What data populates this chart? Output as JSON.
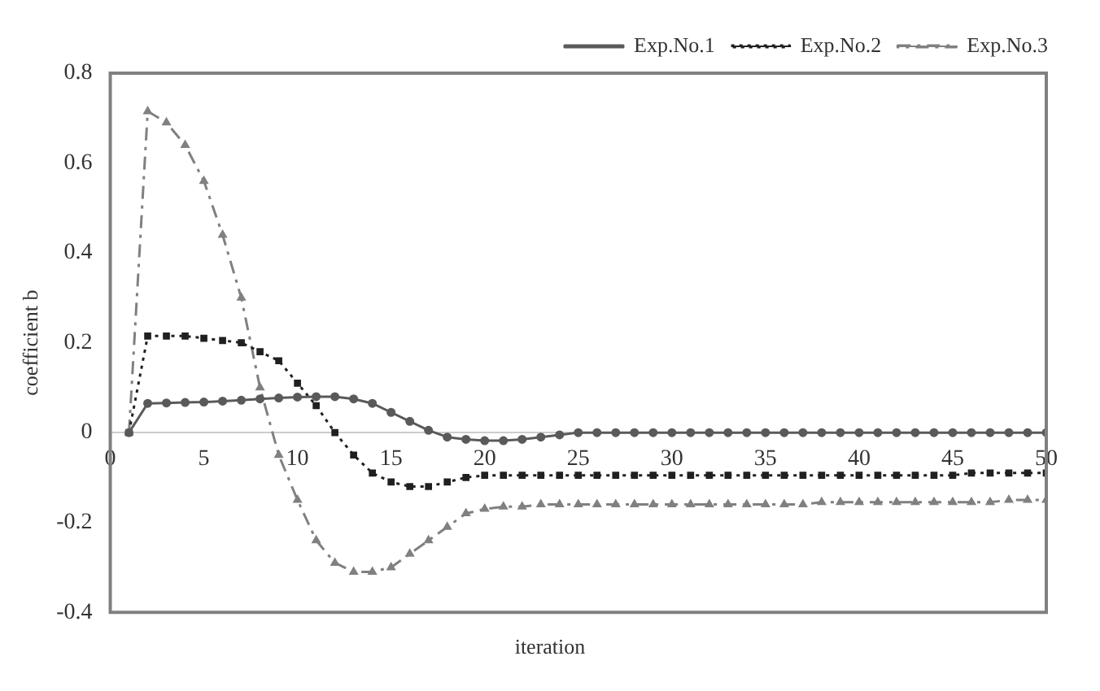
{
  "chart_data": {
    "type": "line",
    "xlabel": "iteration",
    "ylabel": "coefficient b",
    "x": [
      1,
      2,
      3,
      4,
      5,
      6,
      7,
      8,
      9,
      10,
      11,
      12,
      13,
      14,
      15,
      16,
      17,
      18,
      19,
      20,
      21,
      22,
      23,
      24,
      25,
      26,
      27,
      28,
      29,
      30,
      31,
      32,
      33,
      34,
      35,
      36,
      37,
      38,
      39,
      40,
      41,
      42,
      43,
      44,
      45,
      46,
      47,
      48,
      49,
      50
    ],
    "xlim": [
      0,
      50
    ],
    "xticks": [
      0,
      5,
      10,
      15,
      20,
      25,
      30,
      35,
      40,
      45,
      50
    ],
    "ylim": [
      -0.4,
      0.8
    ],
    "yticks": [
      -0.4,
      -0.2,
      0,
      0.2,
      0.4,
      0.6,
      0.8
    ],
    "grid": false,
    "legend": "top right",
    "series": [
      {
        "name": "Exp.No.1",
        "color": "#5a5a5a",
        "marker": "circle",
        "line_style": "solid",
        "values": [
          0,
          0.065,
          0.066,
          0.067,
          0.068,
          0.07,
          0.072,
          0.075,
          0.077,
          0.079,
          0.08,
          0.08,
          0.075,
          0.065,
          0.045,
          0.025,
          0.005,
          -0.01,
          -0.015,
          -0.018,
          -0.018,
          -0.015,
          -0.01,
          -0.005,
          0,
          0,
          0,
          0,
          0,
          0,
          0,
          0,
          0,
          0,
          0,
          0,
          0,
          0,
          0,
          0,
          0,
          0,
          0,
          0,
          0,
          0,
          0,
          0,
          0,
          0
        ]
      },
      {
        "name": "Exp.No.2",
        "color": "#202020",
        "marker": "square",
        "line_style": "dotted",
        "values": [
          0,
          0.215,
          0.215,
          0.215,
          0.21,
          0.205,
          0.2,
          0.18,
          0.16,
          0.11,
          0.06,
          0,
          -0.05,
          -0.09,
          -0.11,
          -0.12,
          -0.12,
          -0.11,
          -0.1,
          -0.095,
          -0.095,
          -0.095,
          -0.095,
          -0.095,
          -0.095,
          -0.095,
          -0.095,
          -0.095,
          -0.095,
          -0.095,
          -0.095,
          -0.095,
          -0.095,
          -0.095,
          -0.095,
          -0.095,
          -0.095,
          -0.095,
          -0.095,
          -0.095,
          -0.095,
          -0.095,
          -0.095,
          -0.095,
          -0.095,
          -0.09,
          -0.09,
          -0.09,
          -0.09,
          -0.09
        ]
      },
      {
        "name": "Exp.No.3",
        "color": "#808080",
        "marker": "triangle",
        "line_style": "dashed",
        "values": [
          0,
          0.715,
          0.69,
          0.64,
          0.56,
          0.44,
          0.3,
          0.1,
          -0.05,
          -0.15,
          -0.24,
          -0.29,
          -0.31,
          -0.31,
          -0.3,
          -0.27,
          -0.24,
          -0.21,
          -0.18,
          -0.17,
          -0.165,
          -0.165,
          -0.16,
          -0.16,
          -0.16,
          -0.16,
          -0.16,
          -0.16,
          -0.16,
          -0.16,
          -0.16,
          -0.16,
          -0.16,
          -0.16,
          -0.16,
          -0.16,
          -0.16,
          -0.155,
          -0.155,
          -0.155,
          -0.155,
          -0.155,
          -0.155,
          -0.155,
          -0.155,
          -0.155,
          -0.155,
          -0.15,
          -0.15,
          -0.15
        ]
      }
    ]
  }
}
